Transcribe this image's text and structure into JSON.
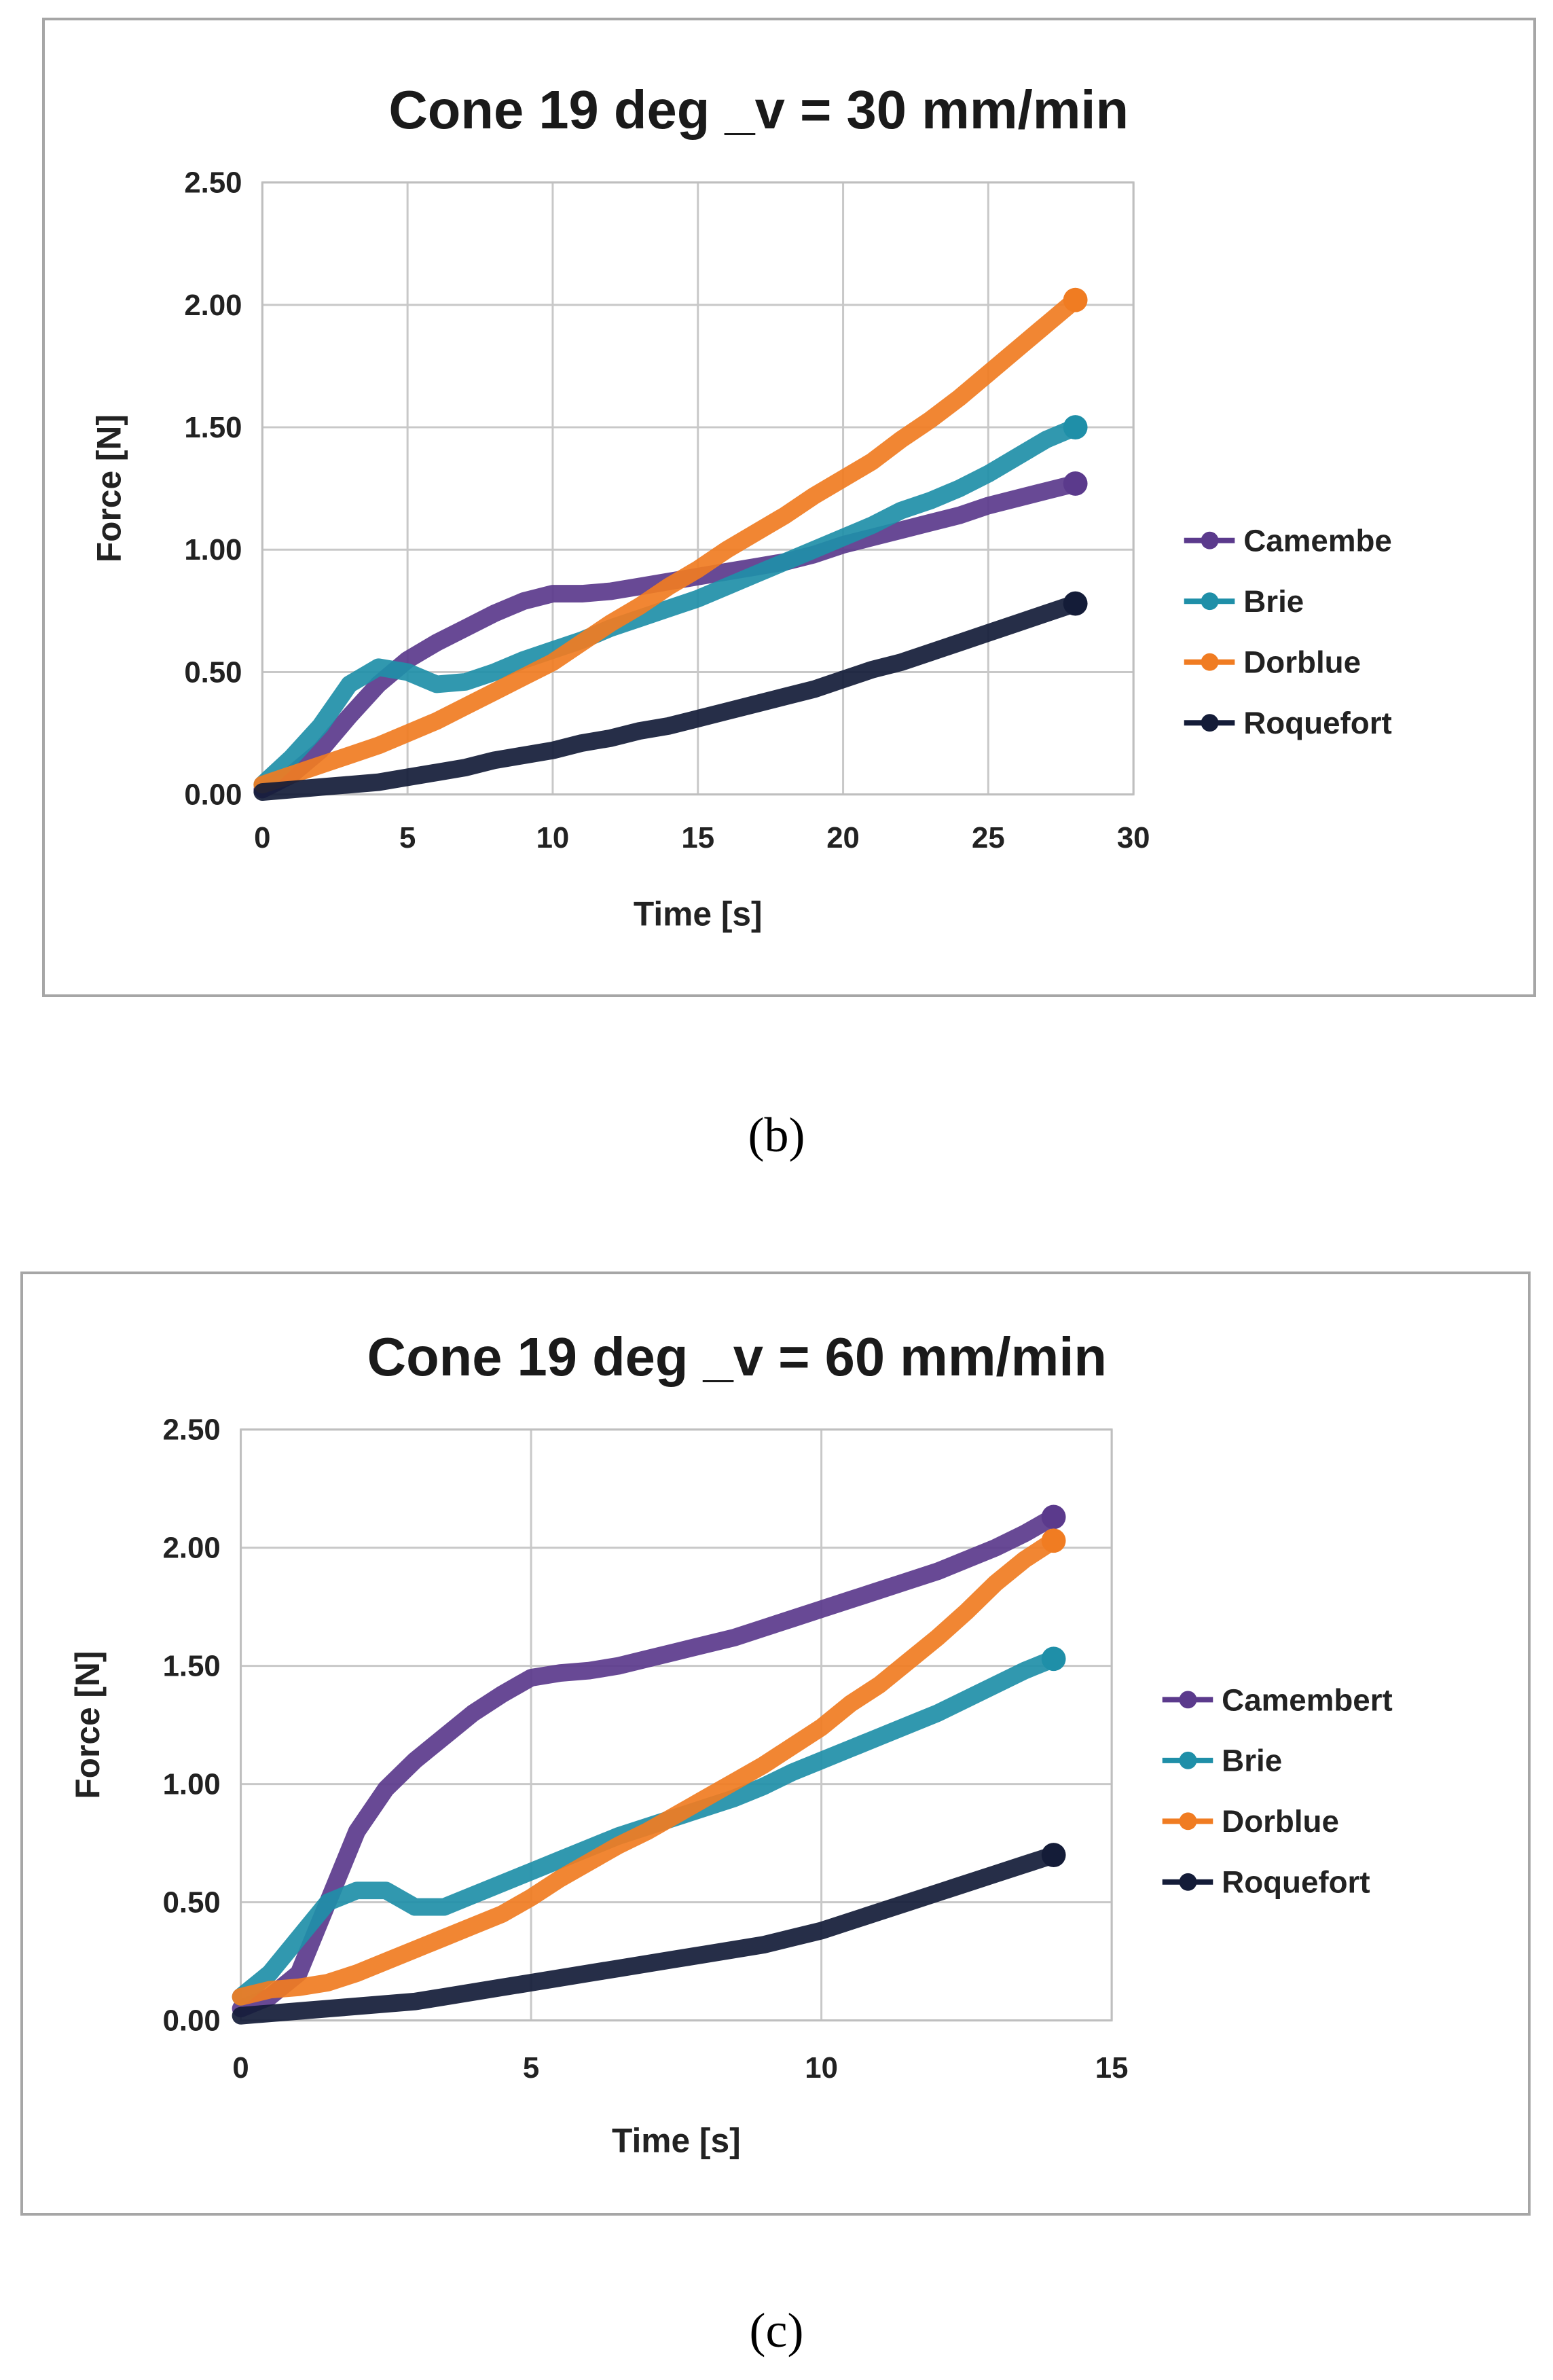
{
  "panels": [
    {
      "caption_letter": "b",
      "chart_data": {
        "type": "line",
        "title": "Cone 19 deg _v = 30 mm/min",
        "xlabel": "Time [s]",
        "ylabel": "Force [N]",
        "xlim": [
          0,
          30
        ],
        "ylim": [
          0,
          2.5
        ],
        "xticks": [
          0,
          5,
          10,
          15,
          20,
          25,
          30
        ],
        "xtick_labels": [
          "0",
          "5",
          "10",
          "15",
          "20",
          "25",
          "30"
        ],
        "yticks": [
          0,
          0.5,
          1.0,
          1.5,
          2.0,
          2.5
        ],
        "ytick_labels": [
          "0.00",
          "0.50",
          "1.00",
          "1.50",
          "2.00",
          "2.50"
        ],
        "grid": true,
        "legend_position": "right",
        "series": [
          {
            "name": "Camembe",
            "color": "#5b3a8c",
            "x": [
              0,
              1,
              2,
              3,
              4,
              5,
              6,
              7,
              8,
              9,
              10,
              11,
              12,
              13,
              14,
              15,
              16,
              17,
              18,
              19,
              20,
              21,
              22,
              23,
              24,
              25,
              26,
              27,
              28
            ],
            "y": [
              0.02,
              0.08,
              0.18,
              0.32,
              0.45,
              0.55,
              0.62,
              0.68,
              0.74,
              0.79,
              0.82,
              0.82,
              0.83,
              0.85,
              0.87,
              0.89,
              0.91,
              0.93,
              0.95,
              0.98,
              1.02,
              1.05,
              1.08,
              1.11,
              1.14,
              1.18,
              1.21,
              1.24,
              1.27
            ]
          },
          {
            "name": "Brie",
            "color": "#1f8fa8",
            "x": [
              0,
              1,
              2,
              3,
              4,
              5,
              6,
              7,
              8,
              9,
              10,
              11,
              12,
              13,
              14,
              15,
              16,
              17,
              18,
              19,
              20,
              21,
              22,
              23,
              24,
              25,
              26,
              27,
              28
            ],
            "y": [
              0.04,
              0.15,
              0.28,
              0.45,
              0.52,
              0.5,
              0.45,
              0.46,
              0.5,
              0.55,
              0.59,
              0.63,
              0.68,
              0.72,
              0.76,
              0.8,
              0.85,
              0.9,
              0.95,
              1.0,
              1.05,
              1.1,
              1.16,
              1.2,
              1.25,
              1.31,
              1.38,
              1.45,
              1.5
            ]
          },
          {
            "name": "Dorblue",
            "color": "#f07c22",
            "x": [
              0,
              1,
              2,
              3,
              4,
              5,
              6,
              7,
              8,
              9,
              10,
              11,
              12,
              13,
              14,
              15,
              16,
              17,
              18,
              19,
              20,
              21,
              22,
              23,
              24,
              25,
              26,
              27,
              28
            ],
            "y": [
              0.04,
              0.08,
              0.12,
              0.16,
              0.2,
              0.25,
              0.3,
              0.36,
              0.42,
              0.48,
              0.54,
              0.62,
              0.7,
              0.77,
              0.85,
              0.92,
              1.0,
              1.07,
              1.14,
              1.22,
              1.29,
              1.36,
              1.45,
              1.53,
              1.62,
              1.72,
              1.82,
              1.92,
              2.02
            ]
          },
          {
            "name": "Roquefort",
            "color": "#141c38",
            "x": [
              0,
              1,
              2,
              3,
              4,
              5,
              6,
              7,
              8,
              9,
              10,
              11,
              12,
              13,
              14,
              15,
              16,
              17,
              18,
              19,
              20,
              21,
              22,
              23,
              24,
              25,
              26,
              27,
              28
            ],
            "y": [
              0.01,
              0.02,
              0.03,
              0.04,
              0.05,
              0.07,
              0.09,
              0.11,
              0.14,
              0.16,
              0.18,
              0.21,
              0.23,
              0.26,
              0.28,
              0.31,
              0.34,
              0.37,
              0.4,
              0.43,
              0.47,
              0.51,
              0.54,
              0.58,
              0.62,
              0.66,
              0.7,
              0.74,
              0.78
            ]
          }
        ]
      }
    },
    {
      "caption_letter": "c",
      "chart_data": {
        "type": "line",
        "title": "Cone 19 deg _v = 60 mm/min",
        "xlabel": "Time [s]",
        "ylabel": "Force [N]",
        "xlim": [
          0,
          15
        ],
        "ylim": [
          0,
          2.5
        ],
        "xticks": [
          0,
          5,
          10,
          15
        ],
        "xtick_labels": [
          "0",
          "5",
          "10",
          "15"
        ],
        "yticks": [
          0,
          0.5,
          1.0,
          1.5,
          2.0,
          2.5
        ],
        "ytick_labels": [
          "0.00",
          "0.50",
          "1.00",
          "1.50",
          "2.00",
          "2.50"
        ],
        "grid": true,
        "legend_position": "right",
        "series": [
          {
            "name": "Camembert",
            "color": "#5b3a8c",
            "x": [
              0,
              0.5,
              1,
              1.5,
              2,
              2.5,
              3,
              3.5,
              4,
              4.5,
              5,
              5.5,
              6,
              6.5,
              7,
              7.5,
              8,
              8.5,
              9,
              9.5,
              10,
              10.5,
              11,
              11.5,
              12,
              12.5,
              13,
              13.5,
              14
            ],
            "y": [
              0.05,
              0.1,
              0.2,
              0.5,
              0.8,
              0.98,
              1.1,
              1.2,
              1.3,
              1.38,
              1.45,
              1.47,
              1.48,
              1.5,
              1.53,
              1.56,
              1.59,
              1.62,
              1.66,
              1.7,
              1.74,
              1.78,
              1.82,
              1.86,
              1.9,
              1.95,
              2.0,
              2.06,
              2.13
            ]
          },
          {
            "name": "Brie",
            "color": "#1f8fa8",
            "x": [
              0,
              0.5,
              1,
              1.5,
              2,
              2.5,
              3,
              3.5,
              4,
              4.5,
              5,
              5.5,
              6,
              6.5,
              7,
              7.5,
              8,
              8.5,
              9,
              9.5,
              10,
              10.5,
              11,
              11.5,
              12,
              12.5,
              13,
              13.5,
              14
            ],
            "y": [
              0.1,
              0.2,
              0.35,
              0.5,
              0.55,
              0.55,
              0.48,
              0.48,
              0.53,
              0.58,
              0.63,
              0.68,
              0.73,
              0.78,
              0.82,
              0.86,
              0.9,
              0.94,
              0.99,
              1.05,
              1.1,
              1.15,
              1.2,
              1.25,
              1.3,
              1.36,
              1.42,
              1.48,
              1.53
            ]
          },
          {
            "name": "Dorblue",
            "color": "#f07c22",
            "x": [
              0,
              0.5,
              1,
              1.5,
              2,
              2.5,
              3,
              3.5,
              4,
              4.5,
              5,
              5.5,
              6,
              6.5,
              7,
              7.5,
              8,
              8.5,
              9,
              9.5,
              10,
              10.5,
              11,
              11.5,
              12,
              12.5,
              13,
              13.5,
              14
            ],
            "y": [
              0.1,
              0.13,
              0.14,
              0.16,
              0.2,
              0.25,
              0.3,
              0.35,
              0.4,
              0.45,
              0.52,
              0.6,
              0.67,
              0.74,
              0.8,
              0.87,
              0.94,
              1.01,
              1.08,
              1.16,
              1.24,
              1.34,
              1.42,
              1.52,
              1.62,
              1.73,
              1.85,
              1.95,
              2.03
            ]
          },
          {
            "name": "Roquefort",
            "color": "#141c38",
            "x": [
              0,
              0.5,
              1,
              1.5,
              2,
              2.5,
              3,
              3.5,
              4,
              4.5,
              5,
              5.5,
              6,
              6.5,
              7,
              7.5,
              8,
              8.5,
              9,
              9.5,
              10,
              10.5,
              11,
              11.5,
              12,
              12.5,
              13,
              13.5,
              14
            ],
            "y": [
              0.02,
              0.03,
              0.04,
              0.05,
              0.06,
              0.07,
              0.08,
              0.1,
              0.12,
              0.14,
              0.16,
              0.18,
              0.2,
              0.22,
              0.24,
              0.26,
              0.28,
              0.3,
              0.32,
              0.35,
              0.38,
              0.42,
              0.46,
              0.5,
              0.54,
              0.58,
              0.62,
              0.66,
              0.7
            ]
          }
        ]
      }
    }
  ],
  "captions": [
    "(b)",
    "(c)"
  ]
}
